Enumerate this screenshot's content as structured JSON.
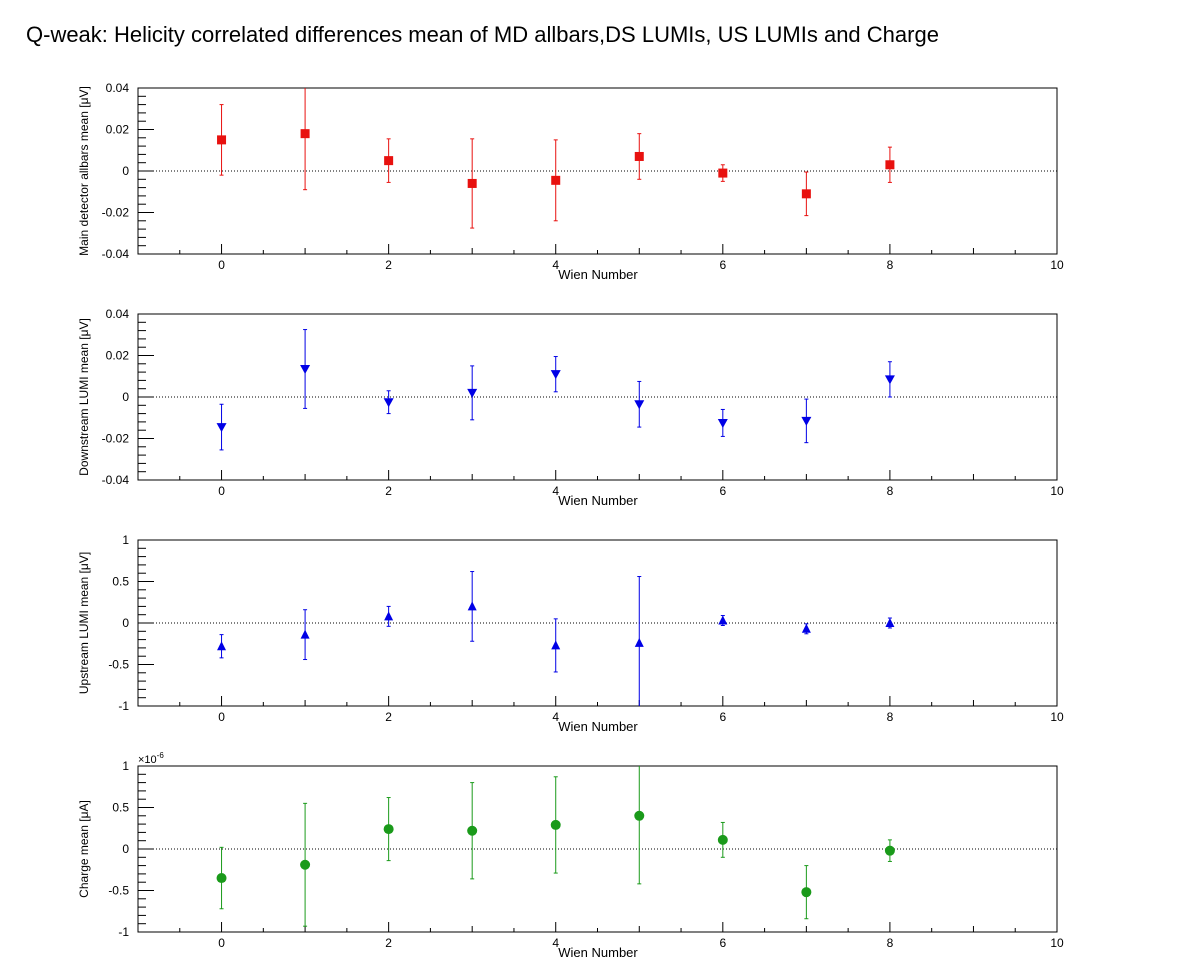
{
  "title": "Q-weak: Helicity correlated differences mean of MD allbars,DS LUMIs, US LUMIs and Charge",
  "chart_data": [
    {
      "type": "scatter",
      "xlabel": "Wien Number",
      "ylabel": "Main detector allbars mean [μV]",
      "xlim": [
        -1,
        10
      ],
      "ylim": [
        -0.04,
        0.04
      ],
      "x_ticks": [
        "0",
        "2",
        "4",
        "6",
        "8",
        "10"
      ],
      "y_ticks": [
        "-0.04",
        "-0.02",
        "0",
        "0.02",
        "0.04"
      ],
      "y_tick_values": [
        -0.04,
        -0.02,
        0,
        0.02,
        0.04
      ],
      "multiplier": "",
      "marker": "square",
      "color": "#e8110f",
      "x": [
        0,
        1,
        2,
        3,
        4,
        5,
        6,
        7,
        8
      ],
      "y": [
        0.015,
        0.018,
        0.005,
        -0.006,
        -0.0045,
        0.007,
        -0.001,
        -0.011,
        0.003
      ],
      "yerr": [
        0.017,
        0.027,
        0.0105,
        0.0215,
        0.0195,
        0.011,
        0.004,
        0.0105,
        0.0085
      ]
    },
    {
      "type": "scatter",
      "xlabel": "Wien Number",
      "ylabel": "Downstream LUMI mean [μV]",
      "xlim": [
        -1,
        10
      ],
      "ylim": [
        -0.04,
        0.04
      ],
      "x_ticks": [
        "0",
        "2",
        "4",
        "6",
        "8",
        "10"
      ],
      "y_ticks": [
        "-0.04",
        "-0.02",
        "0",
        "0.02",
        "0.04"
      ],
      "y_tick_values": [
        -0.04,
        -0.02,
        0,
        0.02,
        0.04
      ],
      "multiplier": "",
      "marker": "triangle-down",
      "color": "#0000e6",
      "x": [
        0,
        1,
        2,
        3,
        4,
        5,
        6,
        7,
        8
      ],
      "y": [
        -0.0145,
        0.0135,
        -0.0025,
        0.002,
        0.011,
        -0.0035,
        -0.0125,
        -0.0115,
        0.0085
      ],
      "yerr": [
        0.011,
        0.019,
        0.0055,
        0.013,
        0.0085,
        0.011,
        0.0065,
        0.0105,
        0.0085
      ]
    },
    {
      "type": "scatter",
      "xlabel": "Wien Number",
      "ylabel": "Upstream LUMI mean [μV]",
      "xlim": [
        -1,
        10
      ],
      "ylim": [
        -1,
        1
      ],
      "x_ticks": [
        "0",
        "2",
        "4",
        "6",
        "8",
        "10"
      ],
      "y_ticks": [
        "-1",
        "-0.5",
        "0",
        "0.5",
        "1"
      ],
      "y_tick_values": [
        -1,
        -0.5,
        0,
        0.5,
        1
      ],
      "multiplier": "",
      "marker": "triangle-up",
      "color": "#0000e6",
      "x": [
        0,
        1,
        2,
        3,
        4,
        5,
        6,
        7,
        8
      ],
      "y": [
        -0.28,
        -0.14,
        0.08,
        0.2,
        -0.27,
        -0.24,
        0.03,
        -0.07,
        0.0
      ],
      "yerr": [
        0.14,
        0.3,
        0.12,
        0.42,
        0.32,
        0.8,
        0.06,
        0.06,
        0.06
      ]
    },
    {
      "type": "scatter",
      "xlabel": "Wien Number",
      "ylabel": "Charge mean [μA]",
      "xlim": [
        -1,
        10
      ],
      "ylim": [
        -1,
        1
      ],
      "x_ticks": [
        "0",
        "2",
        "4",
        "6",
        "8",
        "10"
      ],
      "y_ticks": [
        "-1",
        "-0.5",
        "0",
        "0.5",
        "1"
      ],
      "y_tick_values": [
        -1,
        -0.5,
        0,
        0.5,
        1
      ],
      "multiplier": "×10",
      "multiplier_exp": "-6",
      "marker": "circle",
      "color": "#1a9a1a",
      "x": [
        0,
        1,
        2,
        3,
        4,
        5,
        6,
        7,
        8
      ],
      "y": [
        -0.35,
        -0.19,
        0.24,
        0.22,
        0.29,
        0.4,
        0.11,
        -0.52,
        -0.02
      ],
      "yerr": [
        0.37,
        0.74,
        0.38,
        0.58,
        0.58,
        0.82,
        0.21,
        0.32,
        0.13
      ]
    }
  ]
}
